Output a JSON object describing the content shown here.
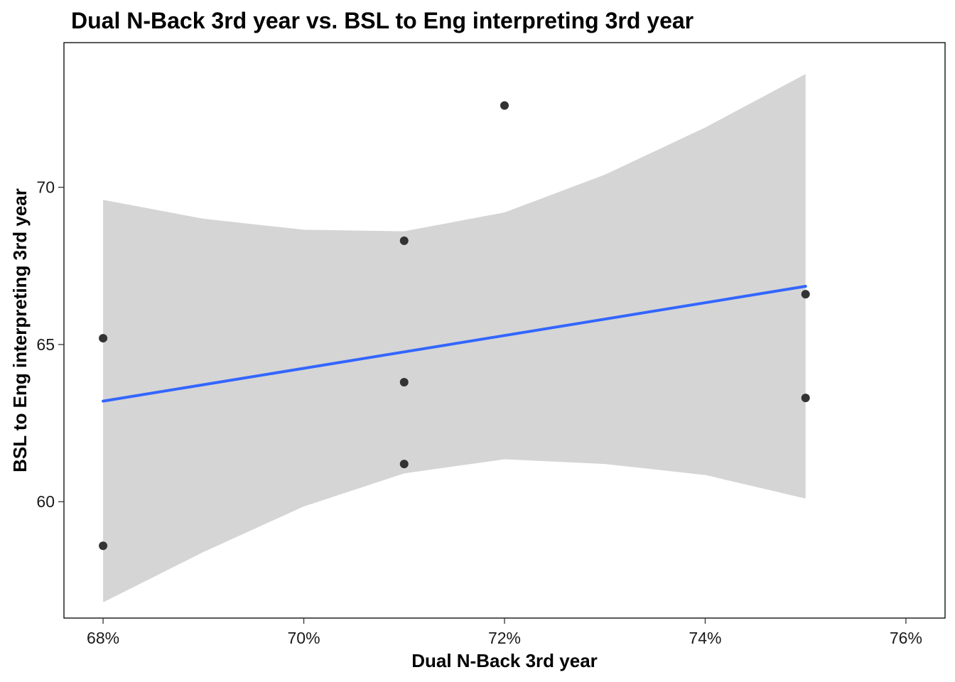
{
  "chart_data": {
    "type": "scatter",
    "title": "Dual N-Back 3rd year vs. BSL to Eng interpreting 3rd year",
    "xlabel": "Dual N-Back 3rd year",
    "ylabel": "BSL to Eng interpreting 3rd year",
    "x_ticks": [
      0.68,
      0.7,
      0.72,
      0.74,
      0.76
    ],
    "x_tick_labels": [
      "68%",
      "70%",
      "72%",
      "74%",
      "76%"
    ],
    "y_ticks": [
      60,
      65,
      70
    ],
    "y_tick_labels": [
      "60",
      "65",
      "70"
    ],
    "xlim": [
      0.6761,
      0.7639
    ],
    "ylim": [
      56.3,
      74.6
    ],
    "grid": false,
    "points": [
      {
        "x": 0.68,
        "y": 65.2
      },
      {
        "x": 0.68,
        "y": 58.6
      },
      {
        "x": 0.71,
        "y": 68.3
      },
      {
        "x": 0.71,
        "y": 63.8
      },
      {
        "x": 0.71,
        "y": 61.2
      },
      {
        "x": 0.72,
        "y": 72.6
      },
      {
        "x": 0.75,
        "y": 66.6
      },
      {
        "x": 0.75,
        "y": 63.3
      }
    ],
    "trend_line": {
      "method": "linear regression",
      "color": "#3366FF",
      "start": {
        "x": 0.68,
        "y": 63.2
      },
      "end": {
        "x": 0.75,
        "y": 66.85
      }
    },
    "confidence_band": {
      "color": "#D5D5D5",
      "x": [
        0.68,
        0.69,
        0.7,
        0.71,
        0.72,
        0.73,
        0.74,
        0.75
      ],
      "upper": [
        69.6,
        69.0,
        68.65,
        68.6,
        69.2,
        70.4,
        71.9,
        73.6
      ],
      "lower": [
        56.8,
        58.4,
        59.85,
        60.9,
        61.35,
        61.2,
        60.85,
        60.1
      ]
    },
    "point_color": "#333333"
  }
}
